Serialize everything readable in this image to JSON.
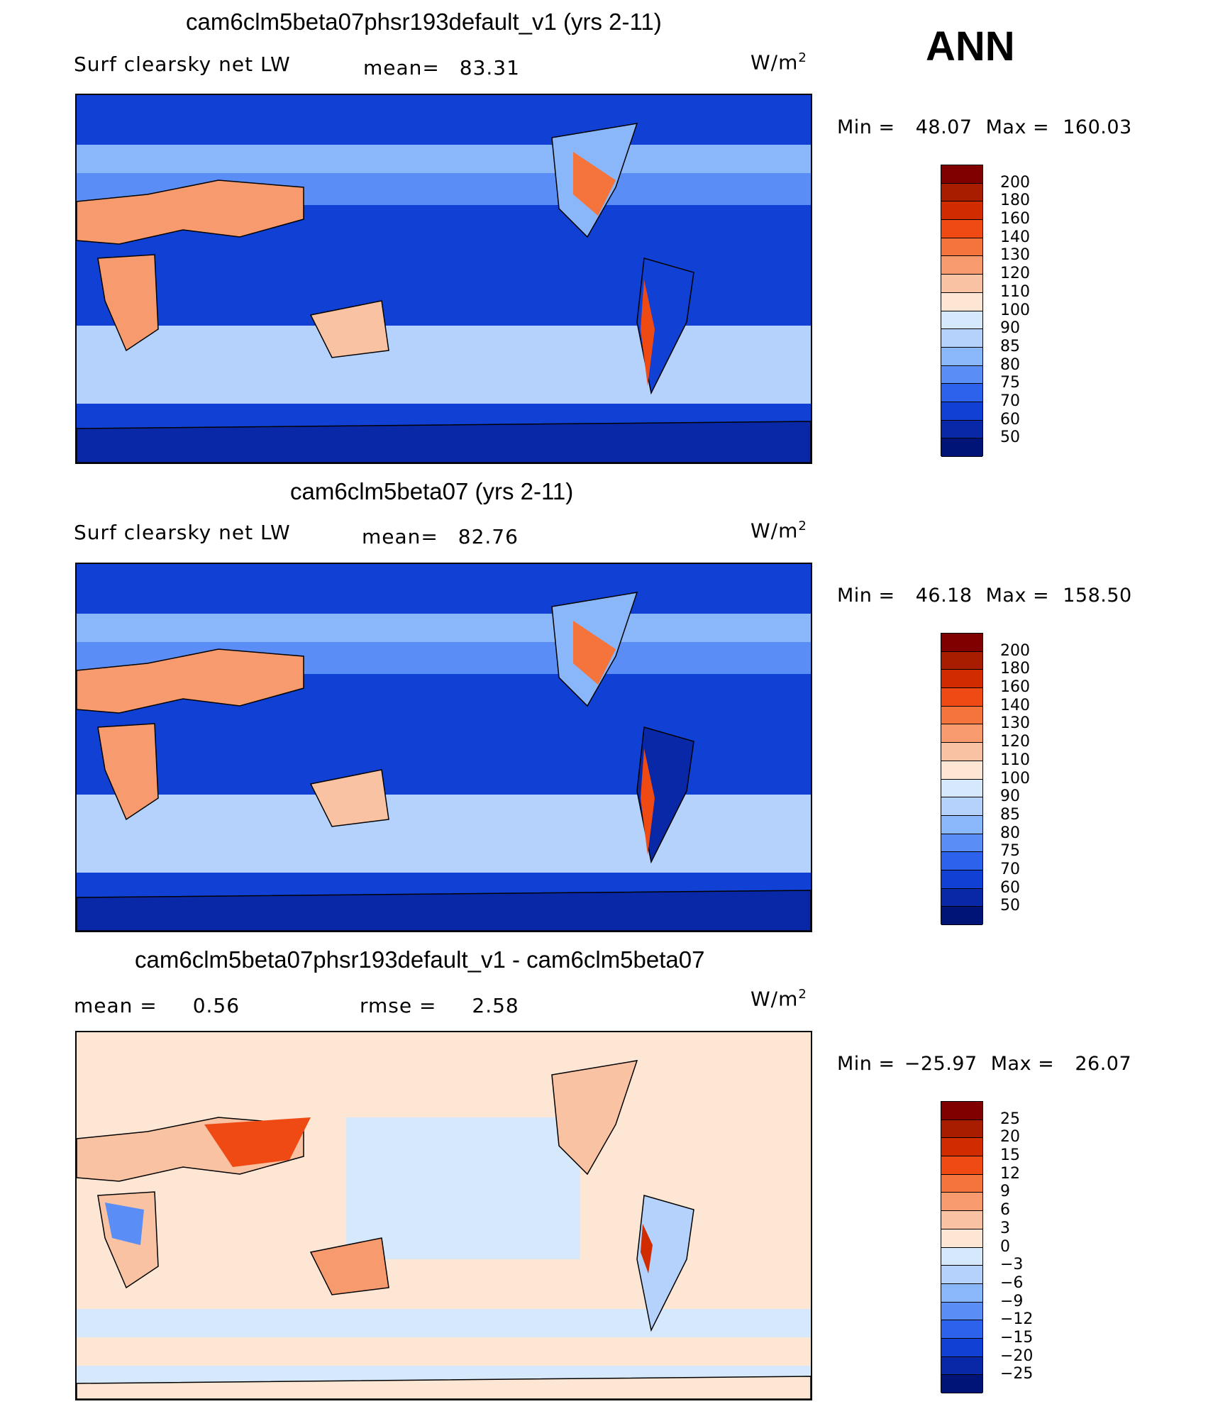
{
  "season": "ANN",
  "panels": [
    {
      "title": "cam6clm5beta07phsr193default_v1 (yrs 2-11)",
      "variable": "Surf clearsky net LW",
      "mean_label": "mean=",
      "mean_value": "83.31",
      "units_base": "W/m",
      "units_exp": "2",
      "min_label": "Min  =",
      "min_value": "48.07",
      "max_label": "Max  =",
      "max_value": "160.03",
      "colorbar_labels": [
        "200",
        "180",
        "160",
        "140",
        "130",
        "120",
        "110",
        "100",
        "90",
        "85",
        "80",
        "75",
        "70",
        "60",
        "50"
      ]
    },
    {
      "title": "cam6clm5beta07 (yrs 2-11)",
      "variable": "Surf clearsky net LW",
      "mean_label": "mean=",
      "mean_value": "82.76",
      "units_base": "W/m",
      "units_exp": "2",
      "min_label": "Min  =",
      "min_value": "46.18",
      "max_label": "Max  =",
      "max_value": "158.50",
      "colorbar_labels": [
        "200",
        "180",
        "160",
        "140",
        "130",
        "120",
        "110",
        "100",
        "90",
        "85",
        "80",
        "75",
        "70",
        "60",
        "50"
      ]
    },
    {
      "title": "cam6clm5beta07phsr193default_v1 - cam6clm5beta07",
      "mean_label": "mean  =",
      "mean_value": "0.56",
      "rmse_label": "rmse  =",
      "rmse_value": "2.58",
      "units_base": "W/m",
      "units_exp": "2",
      "min_label": "Min  =",
      "min_value": "−25.97",
      "max_label": "Max  =",
      "max_value": "26.07",
      "colorbar_labels": [
        "25",
        "20",
        "15",
        "12",
        "9",
        "6",
        "3",
        "0",
        "−3",
        "−6",
        "−9",
        "−12",
        "−15",
        "−20",
        "−25"
      ]
    }
  ],
  "colors": {
    "abs_scale": [
      "#800000",
      "#a81c00",
      "#d02c00",
      "#f04a14",
      "#f4743c",
      "#f79a6e",
      "#f9c2a2",
      "#fde6d4",
      "#d6e8fc",
      "#b4d2fc",
      "#8ab6fa",
      "#5a8ef6",
      "#2c62ec",
      "#1040d4",
      "#0828a8",
      "#001478"
    ],
    "diff_scale": [
      "#800000",
      "#a81c00",
      "#d02c00",
      "#f04a14",
      "#f4743c",
      "#f79a6e",
      "#f9c2a2",
      "#fde6d4",
      "#d6e8fc",
      "#b4d2fc",
      "#8ab6fa",
      "#5a8ef6",
      "#2c62ec",
      "#1040d4",
      "#0828a8",
      "#001478"
    ]
  }
}
